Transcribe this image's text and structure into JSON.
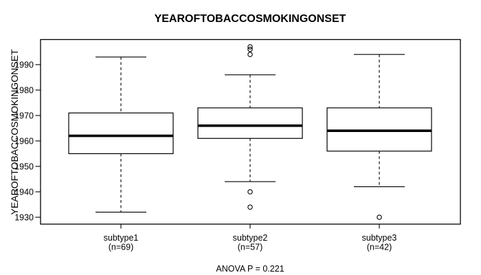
{
  "title": "YEAROFTOBACCOSMOKINGONSET",
  "footnote": "ANOVA P = 0.221",
  "colors": {
    "line": "#000000",
    "box_fill": "#ffffff",
    "background": "#ffffff",
    "text": "#000000"
  },
  "chart_data": {
    "type": "boxplot",
    "title": "YEAROFTOBACCOSMOKINGONSET",
    "xlabel": "",
    "ylabel": "YEAROFTOBACCOSMOKINGONSET",
    "footnote": "ANOVA P = 0.221",
    "ylim": [
      1927,
      2000
    ],
    "y_ticks": [
      1930,
      1940,
      1950,
      1960,
      1970,
      1980,
      1990
    ],
    "grid": false,
    "legend": "none",
    "categories": [
      "subtype1",
      "subtype2",
      "subtype3"
    ],
    "category_sublabels": [
      "(n=69)",
      "(n=57)",
      "(n=42)"
    ],
    "series": [
      {
        "label": "subtype1",
        "sublabel": "(n=69)",
        "n": 69,
        "whisker_low": 1932,
        "q1": 1955,
        "median": 1962,
        "q3": 1971,
        "whisker_high": 1993,
        "outliers": []
      },
      {
        "label": "subtype2",
        "sublabel": "(n=57)",
        "n": 57,
        "whisker_low": 1944,
        "q1": 1961,
        "median": 1966,
        "q3": 1973,
        "whisker_high": 1986,
        "outliers": [
          1934,
          1940,
          1994,
          1996,
          1997
        ]
      },
      {
        "label": "subtype3",
        "sublabel": "(n=42)",
        "n": 42,
        "whisker_low": 1942,
        "q1": 1956,
        "median": 1964,
        "q3": 1973,
        "whisker_high": 1994,
        "outliers": [
          1930
        ]
      }
    ]
  }
}
